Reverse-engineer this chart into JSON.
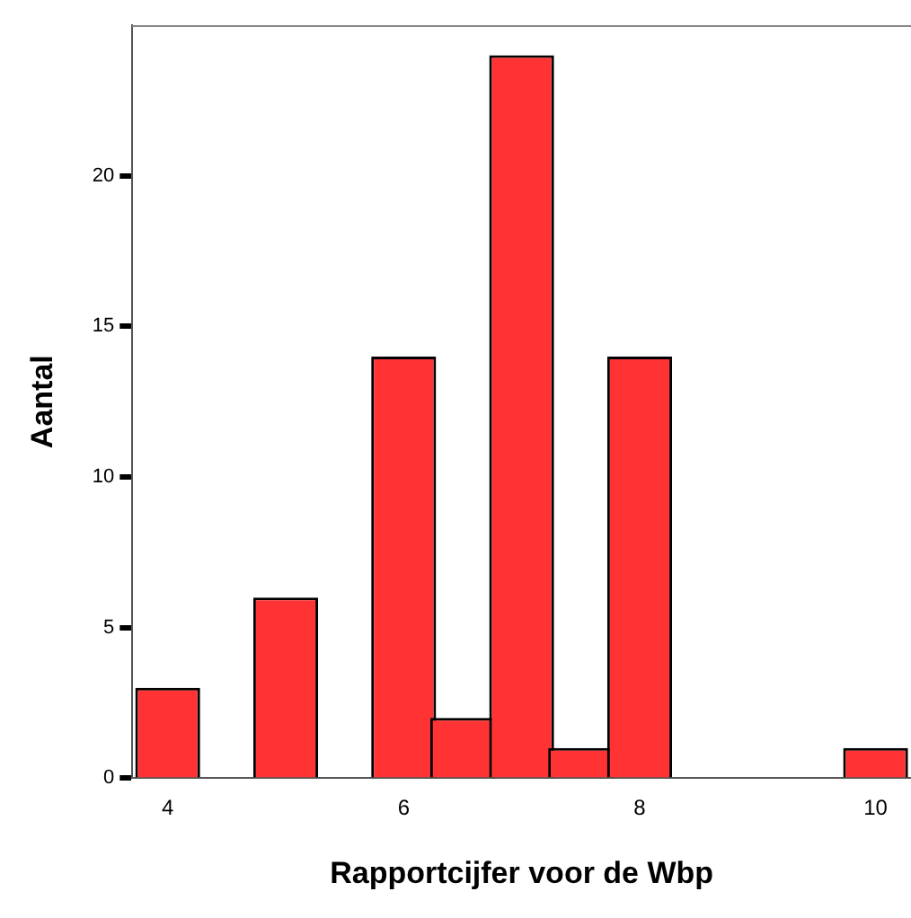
{
  "chart_data": {
    "type": "bar",
    "xlabel": "Rapportcijfer voor de Wbp",
    "ylabel": "Aantal",
    "x": [
      4,
      5,
      6,
      6.5,
      7,
      7.5,
      8,
      10
    ],
    "values": [
      3,
      6,
      14,
      2,
      24,
      1,
      14,
      1
    ],
    "color": "#ff3333",
    "xlim": [
      3.7,
      10.3
    ],
    "xticks": [
      4,
      6,
      8,
      10
    ],
    "ylim": [
      0,
      25
    ],
    "yticks": [
      0,
      5,
      10,
      15,
      20
    ]
  }
}
